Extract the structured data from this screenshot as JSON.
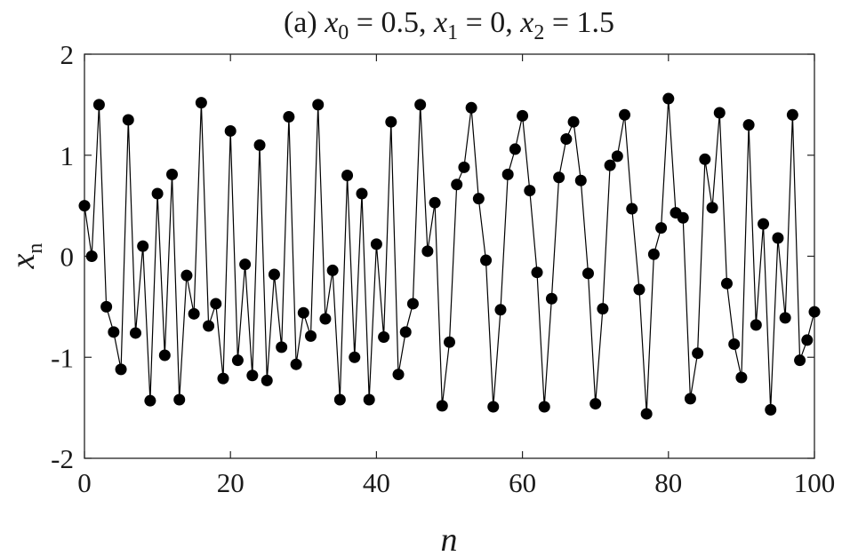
{
  "chart_data": {
    "type": "line",
    "title_parts": {
      "prefix": "(a) ",
      "v0": "x",
      "s0": "0",
      "e0": " = 0.5, ",
      "v1": "x",
      "s1": "1",
      "e1": " = 0, ",
      "v2": "x",
      "s2": "2",
      "e2": " = 1.5"
    },
    "xlabel": "n",
    "ylabel_var": "x",
    "ylabel_sub": "n",
    "xlim": [
      0,
      100
    ],
    "ylim": [
      -2,
      2
    ],
    "x_ticks": [
      0,
      20,
      40,
      60,
      80,
      100
    ],
    "x_tick_labels": [
      "0",
      "20",
      "40",
      "60",
      "80",
      "100"
    ],
    "y_ticks": [
      2,
      1,
      0,
      -1,
      -2
    ],
    "y_tick_labels": [
      "2",
      "1",
      "0",
      "-1",
      "-2"
    ],
    "grid": false,
    "marker": "filled-circle",
    "line_color": "#000000",
    "marker_color": "#000000",
    "series": [
      {
        "x": [
          0,
          1,
          2,
          3,
          4,
          5,
          6,
          7,
          8,
          9,
          10,
          11,
          12,
          13,
          14,
          15,
          16,
          17,
          18,
          19,
          20,
          21,
          22,
          23,
          24,
          25,
          26,
          27,
          28,
          29,
          30,
          31,
          32,
          33,
          34,
          35,
          36,
          37,
          38,
          39,
          40,
          41,
          42,
          43,
          44,
          45,
          46,
          47,
          48,
          49,
          50,
          51,
          52,
          53,
          54,
          55,
          56,
          57,
          58,
          59,
          60,
          61,
          62,
          63,
          64,
          65,
          66,
          67,
          68,
          69,
          70,
          71,
          72,
          73,
          74,
          75,
          76,
          77,
          78,
          79,
          80,
          81,
          82,
          83,
          84,
          85,
          86,
          87,
          88,
          89,
          90,
          91,
          92,
          93,
          94,
          95,
          96,
          97,
          98,
          99,
          100
        ],
        "y": [
          0.5,
          0,
          1.5,
          -0.5,
          -0.75,
          -1.12,
          1.35,
          -0.76,
          0.1,
          -1.43,
          0.62,
          -0.98,
          0.81,
          -1.42,
          -0.19,
          -0.57,
          1.52,
          -0.69,
          -0.47,
          -1.21,
          1.24,
          -1.03,
          -0.08,
          -1.18,
          1.1,
          -1.23,
          -0.18,
          -0.9,
          1.38,
          -1.07,
          -0.56,
          -0.79,
          1.5,
          -0.62,
          -0.14,
          -1.42,
          0.8,
          -1.0,
          0.62,
          -1.42,
          0.12,
          -0.8,
          1.33,
          -1.17,
          -0.75,
          -0.47,
          1.5,
          0.05,
          0.53,
          -1.48,
          -0.85,
          0.71,
          0.88,
          1.47,
          0.57,
          -0.04,
          -1.49,
          -0.53,
          0.81,
          1.06,
          1.39,
          0.65,
          -0.16,
          -1.49,
          -0.42,
          0.78,
          1.16,
          1.33,
          0.75,
          -0.17,
          -1.46,
          -0.52,
          0.9,
          0.99,
          1.4,
          0.47,
          -0.33,
          -1.56,
          0.02,
          0.28,
          1.56,
          0.43,
          0.38,
          -1.41,
          -0.96,
          0.96,
          0.48,
          1.42,
          -0.27,
          -0.87,
          -1.2,
          1.3,
          -0.68,
          0.32,
          -1.52,
          0.18,
          -0.61,
          1.4,
          -1.03,
          -0.83,
          -0.55
        ]
      }
    ]
  }
}
